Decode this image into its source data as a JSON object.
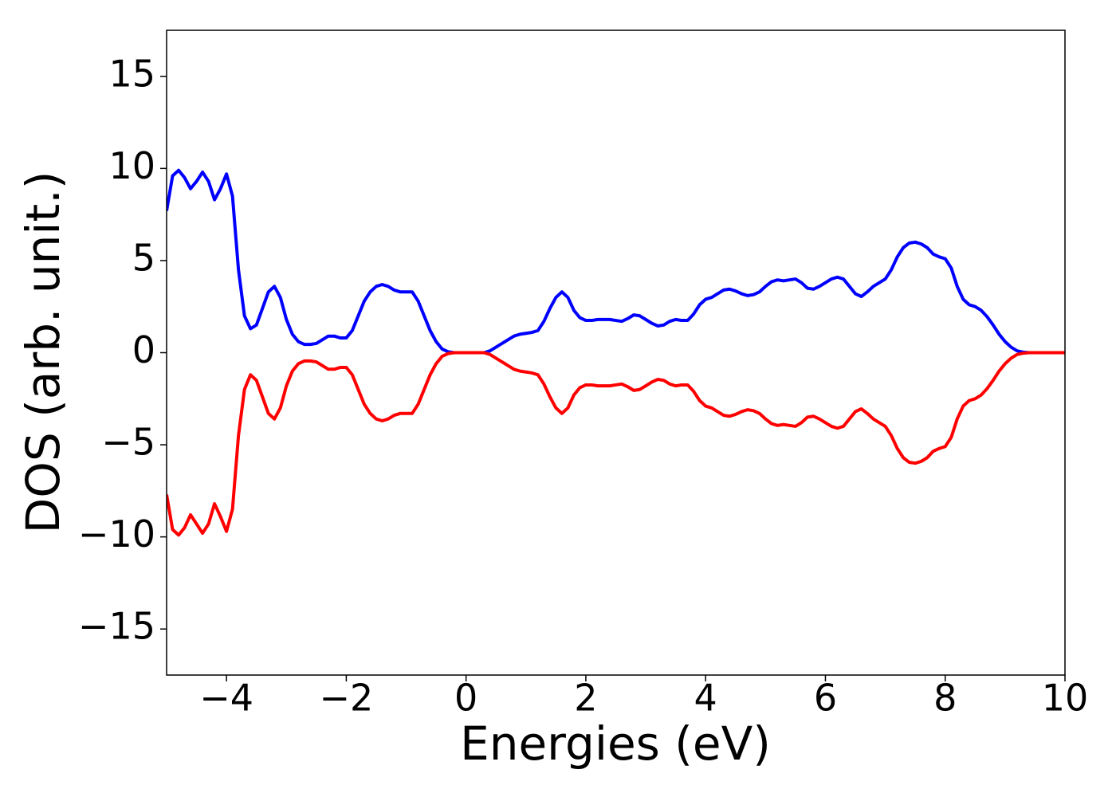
{
  "chart_data": {
    "type": "line",
    "xlabel": "Energies (eV)",
    "ylabel": "DOS (arb. unit.)",
    "x": [
      -5.0,
      -4.9,
      -4.8,
      -4.7,
      -4.6,
      -4.5,
      -4.4,
      -4.3,
      -4.2,
      -4.1,
      -4.0,
      -3.9,
      -3.8,
      -3.7,
      -3.6,
      -3.5,
      -3.4,
      -3.3,
      -3.2,
      -3.1,
      -3.0,
      -2.9,
      -2.8,
      -2.7,
      -2.6,
      -2.5,
      -2.4,
      -2.3,
      -2.2,
      -2.1,
      -2.0,
      -1.9,
      -1.8,
      -1.7,
      -1.6,
      -1.5,
      -1.4,
      -1.3,
      -1.2,
      -1.1,
      -1.0,
      -0.9,
      -0.8,
      -0.7,
      -0.6,
      -0.5,
      -0.4,
      -0.3,
      -0.2,
      -0.1,
      0.0,
      0.1,
      0.2,
      0.3,
      0.4,
      0.5,
      0.6,
      0.7,
      0.8,
      0.9,
      1.0,
      1.1,
      1.2,
      1.3,
      1.4,
      1.5,
      1.6,
      1.7,
      1.8,
      1.9,
      2.0,
      2.1,
      2.2,
      2.3,
      2.4,
      2.5,
      2.6,
      2.7,
      2.8,
      2.9,
      3.0,
      3.1,
      3.2,
      3.3,
      3.4,
      3.5,
      3.6,
      3.7,
      3.8,
      3.9,
      4.0,
      4.1,
      4.2,
      4.3,
      4.4,
      4.5,
      4.6,
      4.7,
      4.8,
      4.9,
      5.0,
      5.1,
      5.2,
      5.3,
      5.4,
      5.5,
      5.6,
      5.7,
      5.8,
      5.9,
      6.0,
      6.1,
      6.2,
      6.3,
      6.4,
      6.5,
      6.6,
      6.7,
      6.8,
      6.9,
      7.0,
      7.1,
      7.2,
      7.3,
      7.4,
      7.5,
      7.6,
      7.7,
      7.8,
      7.9,
      8.0,
      8.1,
      8.2,
      8.3,
      8.4,
      8.5,
      8.6,
      8.7,
      8.8,
      8.9,
      9.0,
      9.1,
      9.2,
      9.3,
      9.4,
      9.5,
      9.6,
      9.7,
      9.8,
      9.9,
      10.0
    ],
    "series": [
      {
        "color": "#0000ff",
        "values": [
          7.7,
          9.6,
          9.9,
          9.5,
          8.9,
          9.3,
          9.8,
          9.3,
          8.3,
          8.9,
          9.7,
          8.5,
          4.5,
          2.0,
          1.3,
          1.5,
          2.4,
          3.3,
          3.6,
          3.0,
          1.8,
          1.0,
          0.6,
          0.45,
          0.45,
          0.5,
          0.7,
          0.9,
          0.9,
          0.8,
          0.8,
          1.2,
          2.0,
          2.8,
          3.3,
          3.6,
          3.7,
          3.6,
          3.4,
          3.3,
          3.3,
          3.3,
          2.8,
          2.0,
          1.2,
          0.6,
          0.2,
          0.05,
          0,
          0,
          0,
          0,
          0,
          0,
          0.1,
          0.3,
          0.5,
          0.7,
          0.9,
          1.0,
          1.05,
          1.1,
          1.2,
          1.7,
          2.4,
          3.0,
          3.3,
          3.0,
          2.3,
          1.9,
          1.75,
          1.75,
          1.8,
          1.8,
          1.8,
          1.75,
          1.7,
          1.85,
          2.05,
          2.0,
          1.8,
          1.6,
          1.45,
          1.5,
          1.7,
          1.8,
          1.75,
          1.75,
          2.1,
          2.6,
          2.9,
          3.0,
          3.2,
          3.4,
          3.45,
          3.35,
          3.2,
          3.1,
          3.15,
          3.3,
          3.6,
          3.85,
          3.95,
          3.9,
          3.95,
          4.0,
          3.8,
          3.5,
          3.45,
          3.6,
          3.8,
          4.0,
          4.1,
          4.0,
          3.6,
          3.2,
          3.05,
          3.3,
          3.6,
          3.8,
          4.0,
          4.5,
          5.2,
          5.7,
          5.95,
          6.0,
          5.9,
          5.7,
          5.35,
          5.2,
          5.1,
          4.6,
          3.6,
          2.9,
          2.6,
          2.5,
          2.3,
          1.95,
          1.5,
          1.0,
          0.6,
          0.3,
          0.1,
          0.03,
          0,
          0,
          0,
          0,
          0,
          0,
          0
        ]
      },
      {
        "color": "#ff0000",
        "values": [
          -7.7,
          -9.6,
          -9.9,
          -9.5,
          -8.8,
          -9.3,
          -9.8,
          -9.3,
          -8.2,
          -8.9,
          -9.7,
          -8.5,
          -4.5,
          -2.0,
          -1.2,
          -1.5,
          -2.4,
          -3.3,
          -3.6,
          -3.0,
          -1.8,
          -1.0,
          -0.6,
          -0.45,
          -0.45,
          -0.5,
          -0.7,
          -0.9,
          -0.9,
          -0.8,
          -0.8,
          -1.2,
          -2.0,
          -2.8,
          -3.3,
          -3.6,
          -3.7,
          -3.6,
          -3.4,
          -3.3,
          -3.3,
          -3.3,
          -2.8,
          -2.0,
          -1.2,
          -0.6,
          -0.2,
          -0.05,
          0,
          0,
          0,
          0,
          0,
          0,
          -0.1,
          -0.3,
          -0.5,
          -0.7,
          -0.9,
          -1.0,
          -1.05,
          -1.1,
          -1.2,
          -1.7,
          -2.4,
          -3.0,
          -3.3,
          -3.0,
          -2.3,
          -1.9,
          -1.75,
          -1.75,
          -1.8,
          -1.8,
          -1.8,
          -1.75,
          -1.7,
          -1.85,
          -2.05,
          -2.0,
          -1.8,
          -1.6,
          -1.45,
          -1.5,
          -1.7,
          -1.8,
          -1.75,
          -1.75,
          -2.1,
          -2.6,
          -2.9,
          -3.0,
          -3.2,
          -3.4,
          -3.45,
          -3.35,
          -3.2,
          -3.1,
          -3.15,
          -3.3,
          -3.6,
          -3.85,
          -3.95,
          -3.9,
          -3.95,
          -4.0,
          -3.8,
          -3.5,
          -3.45,
          -3.6,
          -3.8,
          -4.0,
          -4.1,
          -4.0,
          -3.6,
          -3.2,
          -3.05,
          -3.3,
          -3.6,
          -3.8,
          -4.0,
          -4.5,
          -5.2,
          -5.7,
          -5.95,
          -6.0,
          -5.9,
          -5.7,
          -5.35,
          -5.2,
          -5.1,
          -4.6,
          -3.6,
          -2.9,
          -2.6,
          -2.5,
          -2.3,
          -1.95,
          -1.5,
          -1.0,
          -0.6,
          -0.3,
          -0.1,
          -0.03,
          0,
          0,
          0,
          0,
          0,
          0,
          0
        ]
      }
    ],
    "xlim": [
      -5,
      10
    ],
    "xticks": [
      {
        "value": -4,
        "label": "−4"
      },
      {
        "value": -2,
        "label": "−2"
      },
      0,
      2,
      4,
      6,
      8,
      10
    ],
    "ylim": [
      -17.5,
      17.5
    ],
    "yticks": [
      {
        "value": -15,
        "label": "−15"
      },
      {
        "value": -10,
        "label": "−10"
      },
      {
        "value": -5,
        "label": "−5"
      },
      0,
      5,
      10,
      15
    ],
    "grid": false
  }
}
